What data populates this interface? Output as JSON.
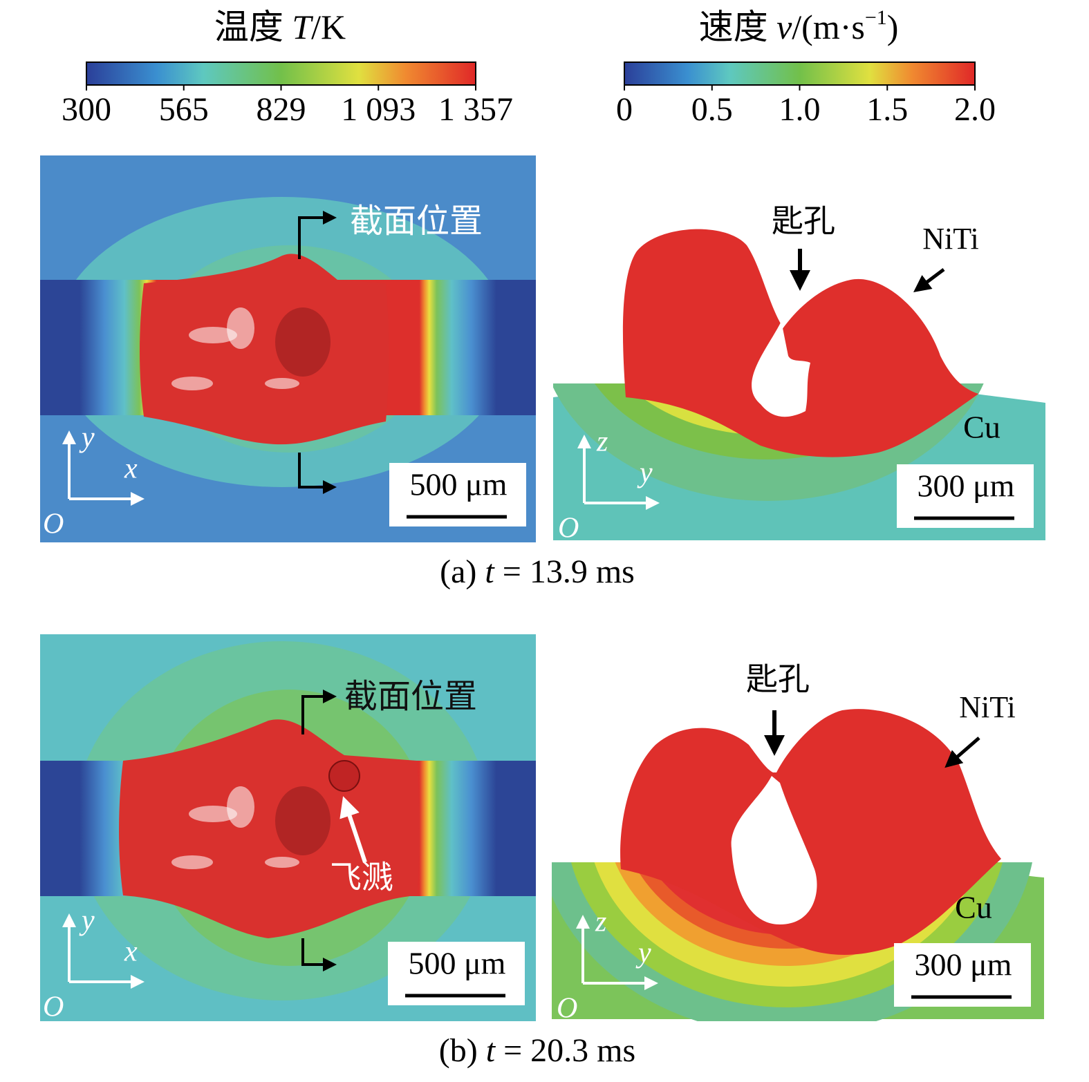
{
  "colorbars": [
    {
      "title": [
        "温度 ",
        "T",
        "/K"
      ],
      "ticks": [
        "300",
        "565",
        "829",
        "1 093",
        "1 357"
      ]
    },
    {
      "title": [
        "速度 ",
        "v",
        "/(m·s",
        "−1",
        ")"
      ],
      "ticks": [
        "0",
        "0.5",
        "1.0",
        "1.5",
        "2.0"
      ]
    }
  ],
  "panels": [
    {
      "caption": [
        "(a) ",
        "t",
        " = 13.9 ms"
      ],
      "section_label": "截面位置",
      "keyhole_label": "匙孔",
      "niti_label": "NiTi",
      "cu_label": "Cu",
      "scale_left": "500 μm",
      "scale_right": "300 μm",
      "axes_left": [
        "y",
        "x",
        "O"
      ],
      "axes_right": [
        "z",
        "y",
        "O"
      ]
    },
    {
      "caption": [
        "(b) ",
        "t",
        " = 20.3 ms"
      ],
      "section_label": "截面位置",
      "keyhole_label": "匙孔",
      "niti_label": "NiTi",
      "cu_label": "Cu",
      "scale_left": "500 μm",
      "scale_right": "300 μm",
      "axes_left": [
        "y",
        "x",
        "O"
      ],
      "axes_right": [
        "z",
        "y",
        "O"
      ],
      "spatter_label": "飞溅"
    }
  ]
}
